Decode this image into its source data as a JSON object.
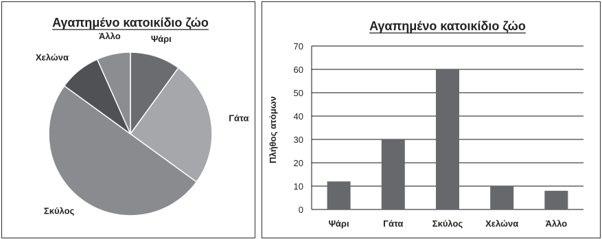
{
  "chart_data": [
    {
      "type": "pie",
      "title": "Αγαπημένο κατοικίδιο ζώο",
      "categories": [
        "Ψάρι",
        "Γάτα",
        "Σκύλος",
        "Χελώνα",
        "Άλλο"
      ],
      "values": [
        12,
        30,
        60,
        10,
        8
      ],
      "colors": [
        "#6b6c70",
        "#a6a7ab",
        "#8a8b8f",
        "#505155",
        "#8c8d91"
      ],
      "legend": "none"
    },
    {
      "type": "bar",
      "title": "Αγαπημένο κατοικίδιο ζώο",
      "categories": [
        "Ψάρι",
        "Γάτα",
        "Σκύλος",
        "Χελώνα",
        "Άλλο"
      ],
      "values": [
        12,
        30,
        60,
        10,
        8
      ],
      "xlabel": "",
      "ylabel": "Πλήθος ατόμων",
      "ylim": [
        0,
        70
      ],
      "yticks": [
        0,
        10,
        20,
        30,
        40,
        50,
        60,
        70
      ],
      "grid": true,
      "bar_color": "#67686c",
      "legend": "none"
    }
  ]
}
